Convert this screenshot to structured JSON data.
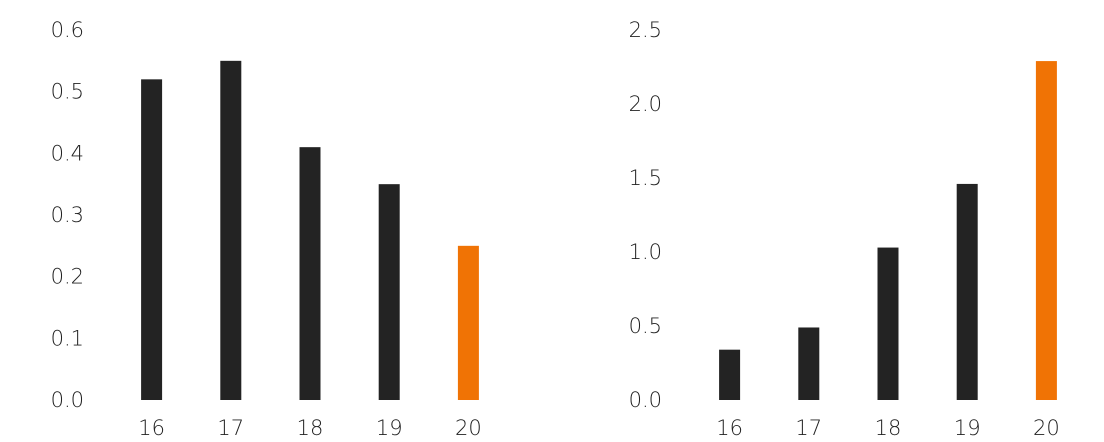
{
  "colors": {
    "bar_default": "#232323",
    "bar_highlight": "#f07305",
    "text": "#222222"
  },
  "chart_data": [
    {
      "type": "bar",
      "categories": [
        "16",
        "17",
        "18",
        "19",
        "20"
      ],
      "values": [
        0.52,
        0.55,
        0.41,
        0.35,
        0.25
      ],
      "highlight_index": 4,
      "title": "",
      "xlabel": "",
      "ylabel": "",
      "ylim": [
        0,
        0.6
      ],
      "yticks": [
        "0.0",
        "0.1",
        "0.2",
        "0.3",
        "0.4",
        "0.5",
        "0.6"
      ],
      "grid": false,
      "legend": "none"
    },
    {
      "type": "bar",
      "categories": [
        "16",
        "17",
        "18",
        "19",
        "20"
      ],
      "values": [
        0.34,
        0.49,
        1.03,
        1.46,
        2.29
      ],
      "highlight_index": 4,
      "title": "",
      "xlabel": "",
      "ylabel": "",
      "ylim": [
        0,
        2.5
      ],
      "yticks": [
        "0.0",
        "0.5",
        "1.0",
        "1.5",
        "2.0",
        "2.5"
      ],
      "grid": false,
      "legend": "none"
    }
  ]
}
